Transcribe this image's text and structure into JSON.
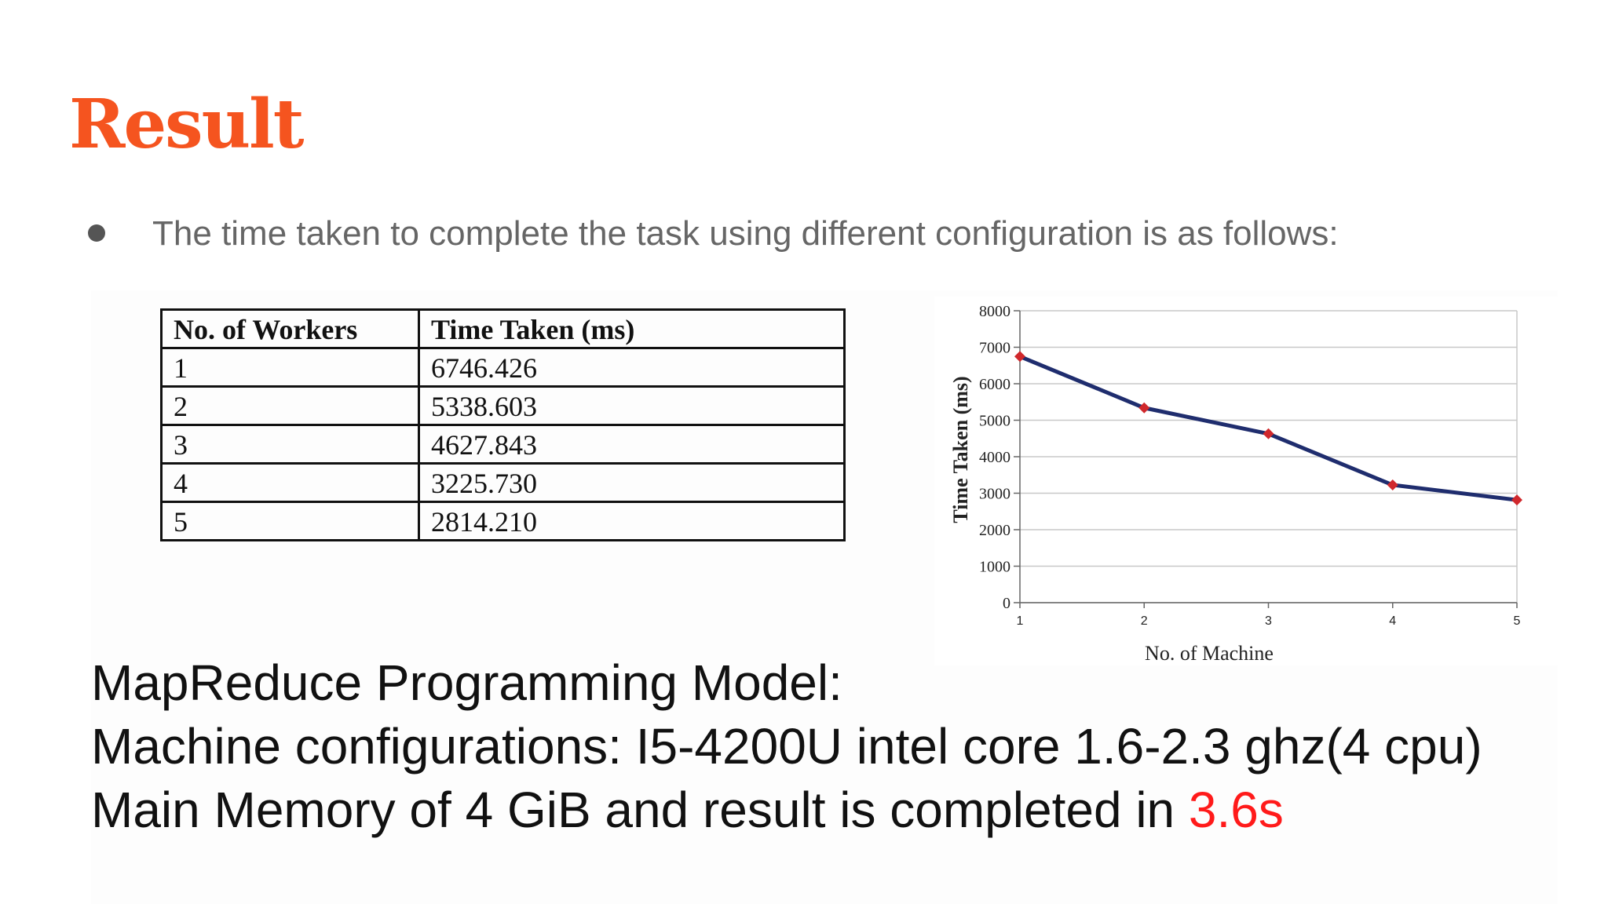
{
  "slide": {
    "title": "Result",
    "bullet": "The time taken to complete the task using different configuration is as follows:",
    "footer": {
      "line1": "MapReduce Programming Model:",
      "line2": "Machine configurations: I5-4200U intel core 1.6-2.3 ghz(4 cpu)",
      "line3_prefix": "Main Memory of 4 GiB and result is completed in ",
      "line3_highlight": "3.6s"
    }
  },
  "table": {
    "headers": [
      "No. of Workers",
      "Time Taken (ms)"
    ],
    "rows": [
      [
        "1",
        "6746.426"
      ],
      [
        "2",
        "5338.603"
      ],
      [
        "3",
        "4627.843"
      ],
      [
        "4",
        "3225.730"
      ],
      [
        "5",
        "2814.210"
      ]
    ]
  },
  "chart_data": {
    "type": "line",
    "x": [
      1,
      2,
      3,
      4,
      5
    ],
    "values": [
      6746.426,
      5338.603,
      4627.843,
      3225.73,
      2814.21
    ],
    "xlabel": "No. of Machine",
    "ylabel": "Time Taken (ms)",
    "ylim": [
      0,
      8000
    ],
    "yticks": [
      "0",
      "1000",
      "2000",
      "3000",
      "4000",
      "5000",
      "6000",
      "7000",
      "8000"
    ],
    "xticks": [
      "1",
      "2",
      "3",
      "4",
      "5"
    ],
    "grid": true,
    "line_color": "#1f2d6e",
    "marker_color": "#d0282c"
  },
  "colors": {
    "title": "#f5541f",
    "bullet_text": "#666666",
    "footer_text": "#111111",
    "highlight": "#ff1a1a"
  }
}
